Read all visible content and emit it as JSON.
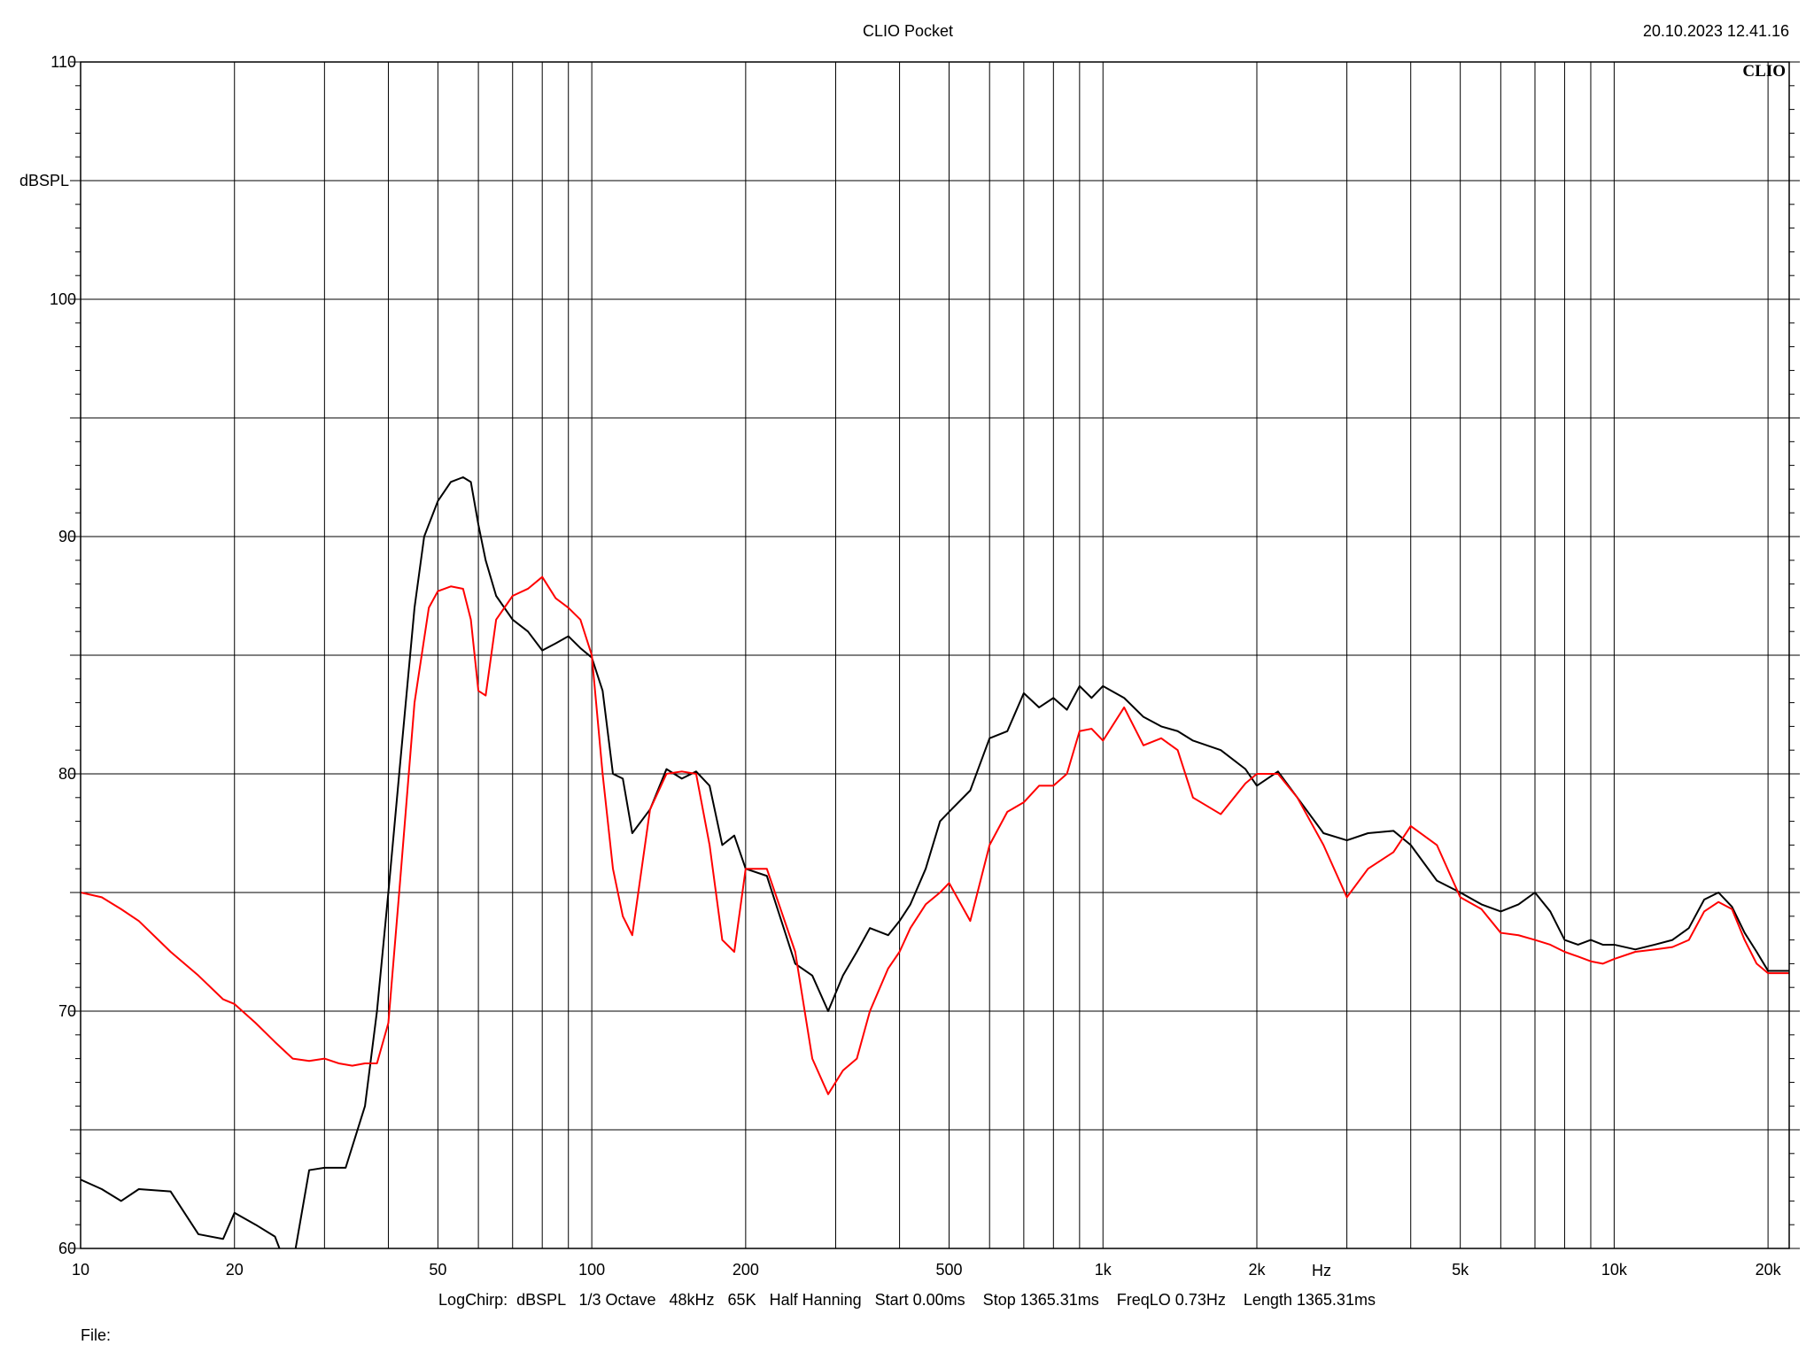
{
  "header": {
    "title": "CLIO Pocket",
    "timestamp": "20.10.2023 12.41.16",
    "brand": "CLIO"
  },
  "footer": {
    "settings": "LogChirp:  dBSPL   1/3 Octave   48kHz   65K   Half Hanning   Start 0.00ms    Stop 1365.31ms    FreqLO 0.73Hz    Length 1365.31ms",
    "file_label": "File:"
  },
  "colors": {
    "black_series": "#000000",
    "red_series": "#ff0000",
    "grid": "#000000"
  },
  "chart_data": {
    "type": "line",
    "title": "CLIO Pocket",
    "xlabel": "Hz",
    "ylabel": "dBSPL",
    "x_scale": "log",
    "xlim": [
      10,
      22000
    ],
    "ylim": [
      60,
      110
    ],
    "grid": true,
    "x_tick_labels": [
      {
        "value": 10,
        "label": "10"
      },
      {
        "value": 20,
        "label": "20"
      },
      {
        "value": 50,
        "label": "50"
      },
      {
        "value": 100,
        "label": "100"
      },
      {
        "value": 200,
        "label": "200"
      },
      {
        "value": 500,
        "label": "500"
      },
      {
        "value": 1000,
        "label": "1k"
      },
      {
        "value": 2000,
        "label": "2k"
      },
      {
        "value": 5000,
        "label": "5k"
      },
      {
        "value": 10000,
        "label": "10k"
      },
      {
        "value": 20000,
        "label": "20k"
      }
    ],
    "y_tick_labels": [
      {
        "value": 60,
        "label": "60"
      },
      {
        "value": 70,
        "label": "70"
      },
      {
        "value": 80,
        "label": "80"
      },
      {
        "value": 90,
        "label": "90"
      },
      {
        "value": 100,
        "label": "100"
      },
      {
        "value": 110,
        "label": "110"
      }
    ],
    "series": [
      {
        "color": "#000000",
        "x": [
          10,
          11,
          12,
          13,
          15,
          17,
          19,
          20,
          22,
          24,
          25,
          26,
          28,
          30,
          33,
          36,
          38,
          40,
          42,
          45,
          47,
          50,
          53,
          56,
          58,
          60,
          62,
          65,
          70,
          75,
          80,
          85,
          90,
          95,
          100,
          105,
          110,
          115,
          120,
          130,
          140,
          150,
          160,
          170,
          180,
          190,
          200,
          220,
          250,
          270,
          290,
          310,
          330,
          350,
          380,
          400,
          420,
          450,
          480,
          500,
          550,
          600,
          650,
          700,
          750,
          800,
          850,
          900,
          950,
          1000,
          1100,
          1200,
          1300,
          1400,
          1500,
          1700,
          1900,
          2000,
          2200,
          2400,
          2700,
          3000,
          3300,
          3700,
          4000,
          4500,
          5000,
          5500,
          6000,
          6500,
          7000,
          7500,
          8000,
          8500,
          9000,
          9500,
          10000,
          11000,
          12000,
          13000,
          14000,
          15000,
          16000,
          17000,
          18000,
          19000,
          20000,
          22000
        ],
        "y": [
          62.9,
          62.5,
          62.0,
          62.5,
          62.4,
          60.6,
          60.4,
          61.5,
          61.0,
          60.5,
          59.5,
          59.3,
          63.3,
          63.4,
          63.4,
          66.0,
          70.0,
          75.0,
          80.0,
          87.0,
          90.0,
          91.5,
          92.3,
          92.5,
          92.3,
          90.5,
          89.0,
          87.5,
          86.5,
          86.0,
          85.2,
          85.5,
          85.8,
          85.3,
          84.9,
          83.5,
          80.0,
          79.8,
          77.5,
          78.5,
          80.2,
          79.8,
          80.1,
          79.5,
          77.0,
          77.4,
          76.0,
          75.7,
          72.0,
          71.5,
          70.0,
          71.5,
          72.5,
          73.5,
          73.2,
          73.8,
          74.5,
          76.0,
          78.0,
          78.4,
          79.3,
          81.5,
          81.8,
          83.4,
          82.8,
          83.2,
          82.7,
          83.7,
          83.2,
          83.7,
          83.2,
          82.4,
          82.0,
          81.8,
          81.4,
          81.0,
          80.2,
          79.5,
          80.1,
          79.0,
          77.5,
          77.2,
          77.5,
          77.6,
          77.0,
          75.5,
          75.0,
          74.5,
          74.2,
          74.5,
          75.0,
          74.2,
          73.0,
          72.8,
          73.0,
          72.8,
          72.8,
          72.6,
          72.8,
          73.0,
          73.5,
          74.7,
          75.0,
          74.4,
          73.3,
          72.5,
          71.7,
          71.7
        ]
      },
      {
        "color": "#ff0000",
        "x": [
          10,
          11,
          12,
          13,
          15,
          17,
          19,
          20,
          22,
          24,
          26,
          28,
          30,
          32,
          34,
          36,
          38,
          40,
          42,
          45,
          48,
          50,
          53,
          56,
          58,
          60,
          62,
          65,
          70,
          75,
          80,
          85,
          90,
          95,
          100,
          105,
          110,
          115,
          120,
          130,
          140,
          150,
          160,
          170,
          180,
          190,
          200,
          220,
          250,
          270,
          290,
          310,
          330,
          350,
          380,
          400,
          420,
          450,
          480,
          500,
          550,
          600,
          650,
          700,
          750,
          800,
          850,
          900,
          950,
          1000,
          1100,
          1200,
          1300,
          1400,
          1500,
          1700,
          1900,
          2000,
          2200,
          2400,
          2700,
          3000,
          3300,
          3700,
          4000,
          4500,
          5000,
          5500,
          6000,
          6500,
          7000,
          7500,
          8000,
          8500,
          9000,
          9500,
          10000,
          11000,
          12000,
          13000,
          14000,
          15000,
          16000,
          17000,
          18000,
          19000,
          20000,
          22000
        ],
        "y": [
          75.0,
          74.8,
          74.3,
          73.8,
          72.5,
          71.5,
          70.5,
          70.3,
          69.5,
          68.7,
          68.0,
          67.9,
          68.0,
          67.8,
          67.7,
          67.8,
          67.8,
          69.5,
          75.0,
          83.0,
          87.0,
          87.7,
          87.9,
          87.8,
          86.5,
          83.5,
          83.3,
          86.5,
          87.5,
          87.8,
          88.3,
          87.4,
          87.0,
          86.5,
          85.0,
          80.0,
          76.0,
          74.0,
          73.2,
          78.5,
          80.0,
          80.1,
          80.0,
          77.0,
          73.0,
          72.5,
          76.0,
          76.0,
          72.5,
          68.0,
          66.5,
          67.5,
          68.0,
          70.0,
          71.8,
          72.5,
          73.5,
          74.5,
          75.0,
          75.4,
          73.8,
          77.0,
          78.4,
          78.8,
          79.5,
          79.5,
          80.0,
          81.8,
          81.9,
          81.4,
          82.8,
          81.2,
          81.5,
          81.0,
          79.0,
          78.3,
          79.6,
          80.0,
          80.0,
          79.0,
          77.0,
          74.8,
          76.0,
          76.7,
          77.8,
          77.0,
          74.8,
          74.3,
          73.3,
          73.2,
          73.0,
          72.8,
          72.5,
          72.3,
          72.1,
          72.0,
          72.2,
          72.5,
          72.6,
          72.7,
          73.0,
          74.2,
          74.6,
          74.3,
          73.0,
          72.0,
          71.6,
          71.6
        ]
      }
    ]
  }
}
